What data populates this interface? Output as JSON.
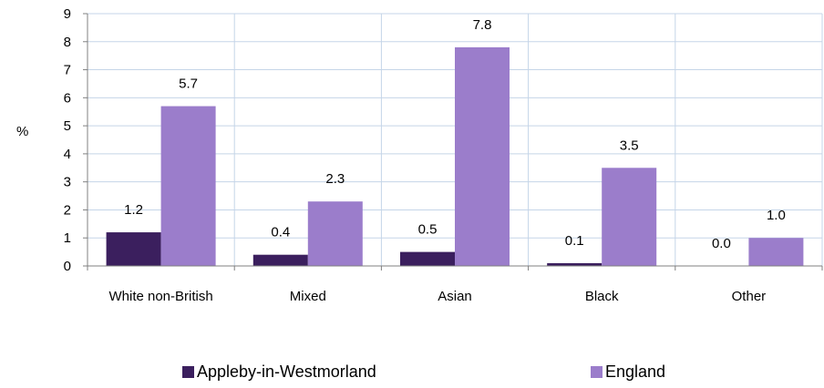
{
  "chart_data": {
    "type": "bar",
    "categories": [
      "White non-British",
      "Mixed",
      "Asian",
      "Black",
      "Other"
    ],
    "series": [
      {
        "name": "Appleby-in-Westmorland",
        "values": [
          1.2,
          0.4,
          0.5,
          0.1,
          0.0
        ],
        "labels": [
          "1.2",
          "0.4",
          "0.5",
          "0.1",
          "0.0"
        ],
        "color": "#3b1f5e"
      },
      {
        "name": "England",
        "values": [
          5.7,
          2.3,
          7.8,
          3.5,
          1.0
        ],
        "labels": [
          "5.7",
          "2.3",
          "7.8",
          "3.5",
          "1.0"
        ],
        "color": "#9b7dcb"
      }
    ],
    "ylabel": "%",
    "ylim": [
      0,
      9
    ],
    "yticks": [
      "0",
      "1",
      "2",
      "3",
      "4",
      "5",
      "6",
      "7",
      "8",
      "9"
    ],
    "grid": true,
    "legend_position": "bottom"
  }
}
